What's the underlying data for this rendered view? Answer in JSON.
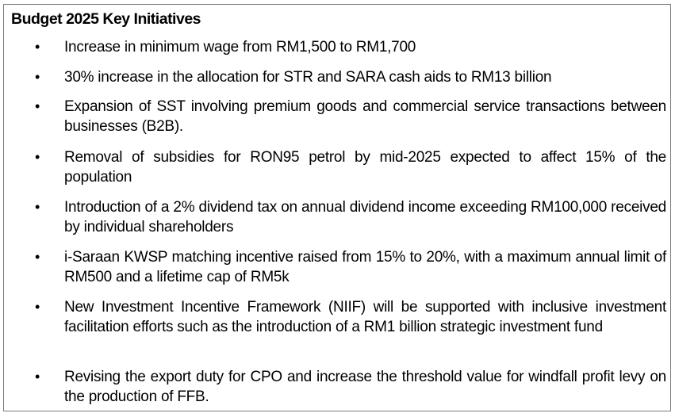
{
  "panel": {
    "title": "Budget 2025 Key Initiatives",
    "bullet_symbol": "•",
    "items": [
      "Increase in minimum wage from RM1,500 to RM1,700",
      "30% increase in the allocation for STR and SARA cash aids to RM13 billion",
      "Expansion of SST involving premium goods and commercial service transactions between businesses (B2B).",
      "Removal of subsidies for RON95 petrol by mid-2025 expected to affect 15% of the population",
      "Introduction of a 2% dividend tax on annual dividend income exceeding RM100,000 received by individual shareholders",
      "i-Saraan KWSP matching incentive raised from 15% to 20%, with a maximum annual limit of RM500 and a lifetime cap of RM5k",
      "New Investment Incentive Framework (NIIF) will be supported with inclusive investment facilitation efforts such as the introduction of a RM1 billion strategic investment fund",
      "Revising the export duty for CPO and increase the threshold value for windfall profit levy on the production of FFB."
    ]
  }
}
